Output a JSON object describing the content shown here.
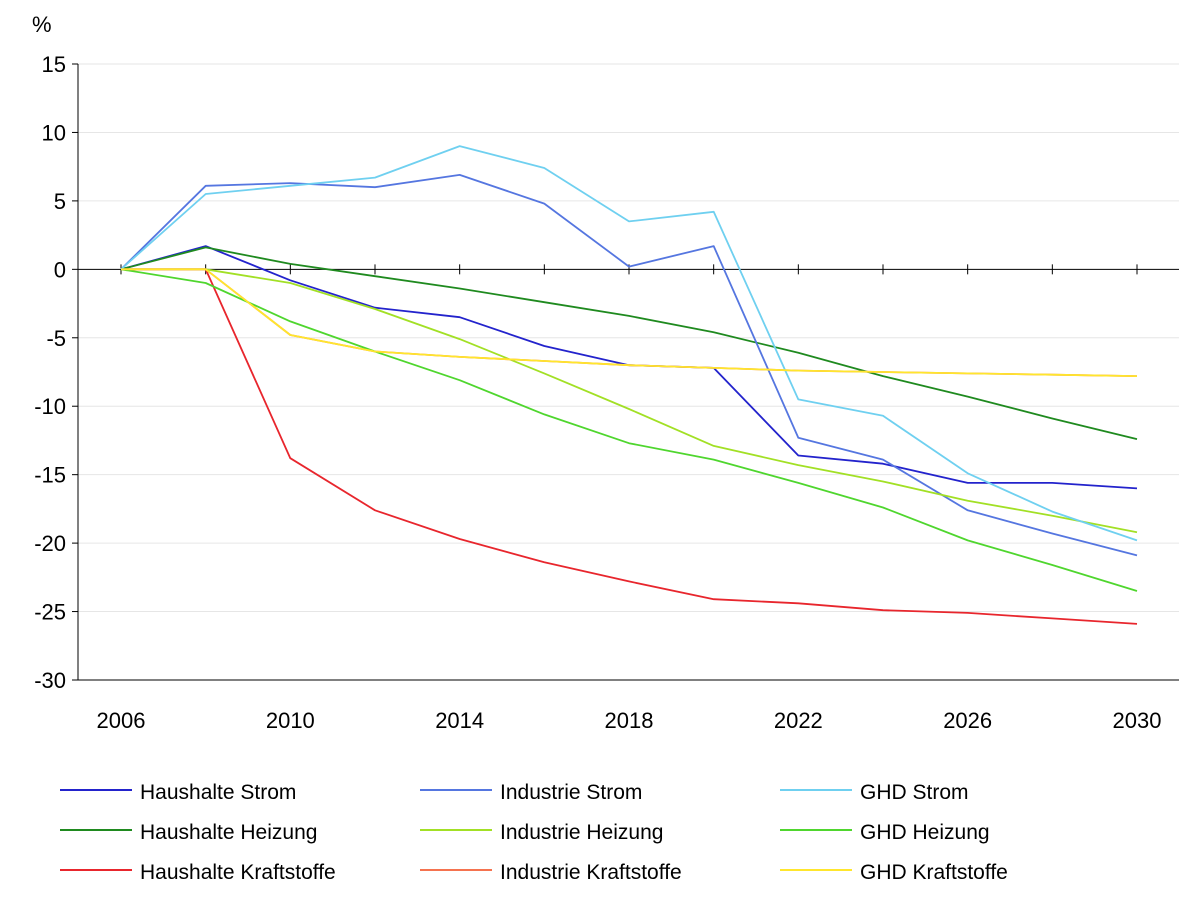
{
  "chart_data": {
    "type": "line",
    "title": "",
    "ylabel": "%",
    "xlabel": "",
    "ylim": [
      -30,
      15
    ],
    "yticks": [
      15,
      10,
      5,
      0,
      -5,
      -10,
      -15,
      -20,
      -25,
      -30
    ],
    "xlim": [
      2006,
      2030
    ],
    "xticks": [
      2006,
      2010,
      2014,
      2018,
      2022,
      2026,
      2030
    ],
    "grid": true,
    "legend_position": "bottom",
    "x": [
      2006,
      2008,
      2010,
      2012,
      2014,
      2016,
      2018,
      2020,
      2022,
      2024,
      2026,
      2028,
      2030
    ],
    "series": [
      {
        "name": "Haushalte Strom",
        "color": "#2323cc",
        "values": [
          0,
          1.7,
          -0.8,
          -2.8,
          -3.5,
          -5.6,
          -7.0,
          -7.2,
          -13.6,
          -14.2,
          -15.6,
          -15.6,
          -16.0
        ]
      },
      {
        "name": "Haushalte Heizung",
        "color": "#1f8a1f",
        "values": [
          0,
          1.6,
          0.4,
          -0.5,
          -1.4,
          -2.4,
          -3.4,
          -4.6,
          -6.1,
          -7.8,
          -9.3,
          -10.9,
          -12.4
        ]
      },
      {
        "name": "Haushalte Kraftstoffe",
        "color": "#e8262d",
        "values": [
          0,
          0,
          -13.8,
          -17.6,
          -19.7,
          -21.4,
          -22.8,
          -24.1,
          -24.4,
          -24.9,
          -25.1,
          -25.5,
          -25.9
        ]
      },
      {
        "name": "Industrie Strom",
        "color": "#5576e0",
        "values": [
          0,
          6.1,
          6.3,
          6.0,
          6.9,
          4.8,
          0.2,
          1.7,
          -12.3,
          -13.9,
          -17.6,
          -19.3,
          -20.9
        ]
      },
      {
        "name": "Industrie Heizung",
        "color": "#a2e025",
        "values": [
          0,
          0,
          -1.0,
          -2.9,
          -5.1,
          -7.6,
          -10.2,
          -12.9,
          -14.3,
          -15.5,
          -16.9,
          -18.0,
          -19.2
        ]
      },
      {
        "name": "Industrie Kraftstoffe",
        "color": "#f5734f",
        "values": [
          0,
          0,
          -4.8,
          -6.0,
          -6.4,
          -6.7,
          -7.0,
          -7.2,
          -7.4,
          -7.5,
          -7.6,
          -7.7,
          -7.8
        ]
      },
      {
        "name": "GHD Strom",
        "color": "#6fd0f0",
        "values": [
          0,
          5.5,
          6.1,
          6.7,
          9.0,
          7.4,
          3.5,
          4.2,
          -9.5,
          -10.7,
          -14.9,
          -17.7,
          -19.8
        ]
      },
      {
        "name": "GHD Heizung",
        "color": "#4fd62e",
        "values": [
          0,
          -1.0,
          -3.8,
          -6.0,
          -8.1,
          -10.6,
          -12.7,
          -13.9,
          -15.6,
          -17.4,
          -19.8,
          -21.6,
          -23.5
        ]
      },
      {
        "name": "GHD Kraftstoffe",
        "color": "#ffe62d",
        "values": [
          0,
          0,
          -4.8,
          -6.0,
          -6.4,
          -6.7,
          -7.0,
          -7.2,
          -7.4,
          -7.5,
          -7.6,
          -7.7,
          -7.8
        ]
      }
    ]
  },
  "colors": {
    "axis": "#000000",
    "grid": "#e6e6e6"
  }
}
